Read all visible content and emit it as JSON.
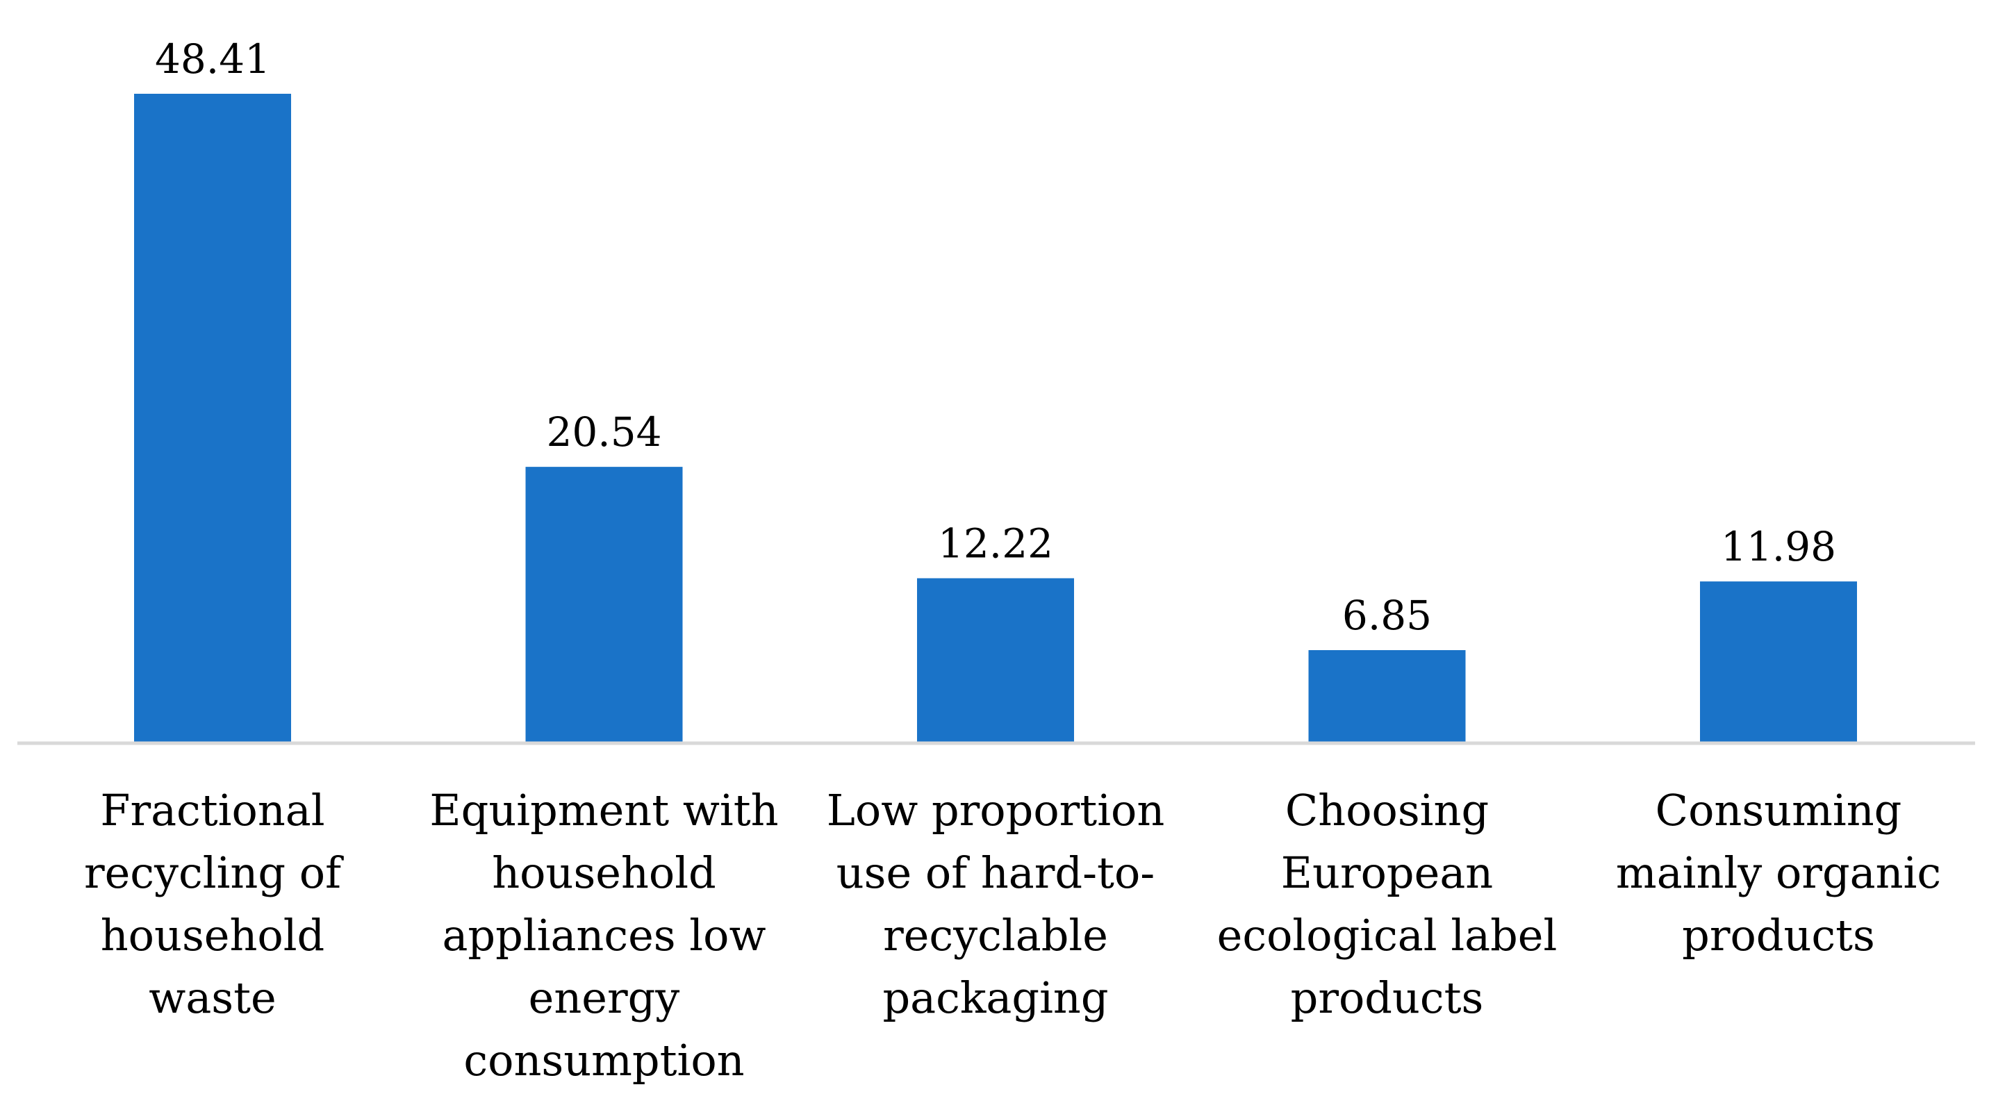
{
  "chart_data": {
    "type": "bar",
    "title": "",
    "xlabel": "",
    "ylabel": "",
    "ylim": [
      0,
      50
    ],
    "grid": false,
    "legend": "none",
    "bar_color": "#1a73c8",
    "axis_color": "#d9d9d9",
    "categories": [
      "Fractional recycling of household waste",
      "Equipment with household appliances low energy consumption",
      "Low proportion use of hard-to-recyclable packaging",
      "Choosing European ecological label products",
      "Consuming mainly organic products"
    ],
    "category_lines": [
      [
        "Fractional",
        "recycling of",
        "household waste"
      ],
      [
        "Equipment with",
        "household",
        "appliances low",
        "energy",
        "consumption"
      ],
      [
        "Low proportion",
        "use of hard-to-",
        "recyclable",
        "packaging"
      ],
      [
        "Choosing",
        "European",
        "ecological label",
        "products"
      ],
      [
        "Consuming",
        "mainly organic",
        "products"
      ]
    ],
    "values": [
      48.41,
      20.54,
      12.22,
      6.85,
      11.98
    ],
    "value_labels": [
      "48.41",
      "20.54",
      "12.22",
      "6.85",
      "11.98"
    ]
  }
}
